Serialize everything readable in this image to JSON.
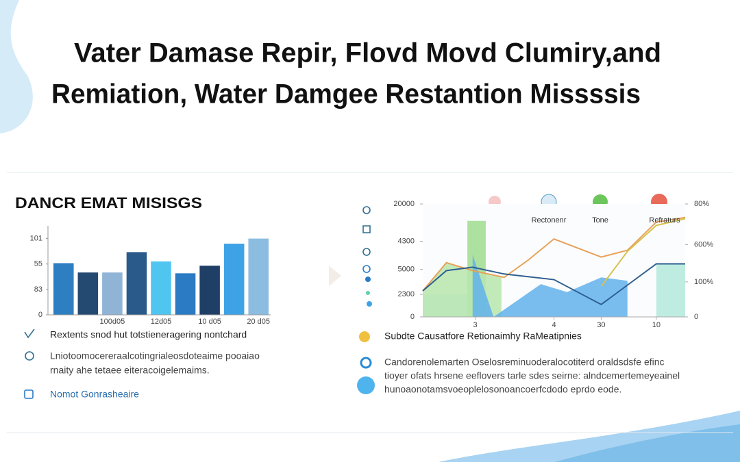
{
  "header": {
    "title_lines": [
      "Vater Damase Repir, Flovd Movd Clumiry,and",
      "Remiation, Water Damgee Restantion Missssis"
    ]
  },
  "left_panel": {
    "title": "DANCR EMAT MISISGS",
    "items": [
      {
        "lines": [
          "Rextents snod hut totstieneragering nontchard"
        ]
      },
      {
        "lines": [
          "Lniotoomocereraalcotingrialeosdoteaime pooaiao",
          "rnaity ahe tetaee eiteracoigelemaims."
        ]
      },
      {
        "lines": [
          "Nomot Gonrasheaire"
        ]
      }
    ]
  },
  "right_panel": {
    "heading": "Subdte Causatfore  Retionaimhy RaMeatipnies",
    "paragraph_lines": [
      "Candorenolemarten Oselosreminuoderalocotiterd oraldsdsfe efinc",
      "tioyer ofats hrsene eeflovers tarle sdes seirne: alndcemertemeyeainel",
      "hunoaonotamsvoeoplelosonoancoerfcdodo eprdo eode."
    ]
  },
  "chart_data": [
    {
      "type": "bar",
      "title": "DANCR EMAT MISISGS",
      "categories": [
        null,
        null,
        "100d05",
        null,
        "12d05",
        null,
        "10 d05",
        null,
        "20 d05"
      ],
      "values": [
        61,
        50,
        50,
        74,
        63,
        49,
        58,
        84,
        90
      ],
      "colors": [
        "#2e7fc1",
        "#254a72",
        "#8fb4d6",
        "#2a5a8a",
        "#4fc6f0",
        "#2a7ac4",
        "#203f66",
        "#3ea3e6",
        "#8cbde0"
      ],
      "ylim": [
        0,
        105
      ],
      "yticks": [
        0,
        {
          "value": 30,
          "label": "83"
        },
        {
          "value": 60,
          "label": "55"
        },
        {
          "value": 90,
          "label": "101"
        }
      ]
    },
    {
      "type": "line",
      "xlim": [
        0,
        100
      ],
      "xticks": [
        {
          "value": 20,
          "label": "3"
        },
        {
          "value": 50,
          "label": "4"
        },
        {
          "value": 68,
          "label": "30"
        },
        {
          "value": 89,
          "label": "10"
        }
      ],
      "ylim": [
        0,
        100
      ],
      "yticks": [
        0,
        {
          "value": 20,
          "label": "2300"
        },
        {
          "value": 42,
          "label": "5000"
        },
        {
          "value": 67,
          "label": "4300"
        },
        {
          "value": 100,
          "label": "20000"
        }
      ],
      "y2lim": [
        0,
        100
      ],
      "y2ticks": [
        0,
        {
          "value": 31,
          "label": "100%"
        },
        {
          "value": 64,
          "label": "600%"
        },
        {
          "value": 100,
          "label": "80%"
        }
      ],
      "areas": [
        {
          "color": "#cfe6f7",
          "x": [
            0,
            17
          ],
          "values": [
            20,
            20
          ]
        },
        {
          "color": "#9fdc8f",
          "x": [
            17,
            24
          ],
          "values": [
            85,
            85
          ]
        },
        {
          "color": "#b7e6ad",
          "x": [
            0,
            9,
            19,
            30
          ],
          "values": [
            23,
            48,
            40,
            35
          ]
        },
        {
          "color": "#62b2ec",
          "x": [
            19,
            27,
            45,
            55,
            68,
            78
          ],
          "values": [
            55,
            0,
            29,
            22,
            35,
            32
          ]
        },
        {
          "color": "#b3e9dc",
          "x": [
            89,
            100
          ],
          "values": [
            47,
            47
          ]
        }
      ],
      "series": [
        {
          "name": "Rectonenr",
          "color": "#e8a25a",
          "x": [
            0,
            9,
            19,
            31,
            40,
            50,
            68,
            78,
            89,
            100
          ],
          "values": [
            23,
            48,
            41,
            35,
            50,
            69,
            53,
            59,
            84,
            88
          ]
        },
        {
          "name": "Tone",
          "color": "#2f5f8f",
          "x": [
            0,
            9,
            19,
            31,
            50,
            68,
            89,
            100
          ],
          "values": [
            23,
            41,
            44,
            38,
            33,
            11,
            47,
            47
          ]
        },
        {
          "name": "Refraturs",
          "color": "#d6c24e",
          "x": [
            68,
            78,
            89,
            100
          ],
          "values": [
            27,
            58,
            81,
            87
          ]
        }
      ]
    }
  ]
}
